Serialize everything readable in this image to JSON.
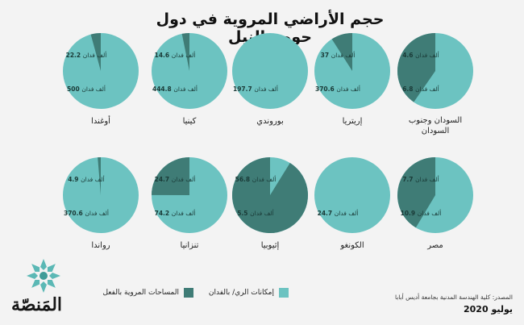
{
  "title": "حجم الأراضي المروية في دول حوض النيل",
  "legend": {
    "potential": "إمكانات الري/ بالفدان",
    "irrigated": "المساحات المروية بالفعل"
  },
  "source": "المصدر: كلية الهندسة المدنية بجامعة أديس أبابا",
  "date": "يوليو 2020",
  "logo": "المَنصّة",
  "colors": {
    "potential": "#6cc3c1",
    "irrigated": "#3f7c76",
    "background": "#f3f3f3"
  },
  "chart_data": {
    "type": "pie",
    "unit": "ألف فدان",
    "series": [
      {
        "name": "إمكانات الري/ بالفدان"
      },
      {
        "name": "المساحات المروية بالفعل"
      }
    ],
    "countries": [
      {
        "name": "أوغندا",
        "potential": 500,
        "irrigated": 22.2,
        "potential_label": "500",
        "irrigated_label": "22.2"
      },
      {
        "name": "كينيا",
        "potential": 444.8,
        "irrigated": 14.6,
        "potential_label": "444.8",
        "irrigated_label": "14.6"
      },
      {
        "name": "بوروندي",
        "potential": 197.7,
        "irrigated": 0,
        "potential_label": "197.7",
        "irrigated_label": ""
      },
      {
        "name": "إريتريا",
        "potential": 370.6,
        "irrigated": 37,
        "potential_label": "370.6",
        "irrigated_label": "37"
      },
      {
        "name": "السودان وجنوب السودان",
        "potential": 6.8,
        "irrigated": 4.6,
        "potential_label": "6.8",
        "irrigated_label": "4.6"
      },
      {
        "name": "رواندا",
        "potential": 370.6,
        "irrigated": 4.9,
        "potential_label": "370.6",
        "irrigated_label": "4.9"
      },
      {
        "name": "تنزانيا",
        "potential": 74.2,
        "irrigated": 24.7,
        "potential_label": "74.2",
        "irrigated_label": "24.7"
      },
      {
        "name": "إثيوبيا",
        "potential": 5.5,
        "irrigated": 56.8,
        "potential_label": "5.5",
        "irrigated_label": "56.8"
      },
      {
        "name": "الكونغو",
        "potential": 24.7,
        "irrigated": 0,
        "potential_label": "24.7",
        "irrigated_label": ""
      },
      {
        "name": "مصر",
        "potential": 10.9,
        "irrigated": 7.7,
        "potential_label": "10.9",
        "irrigated_label": "7.7"
      }
    ]
  }
}
